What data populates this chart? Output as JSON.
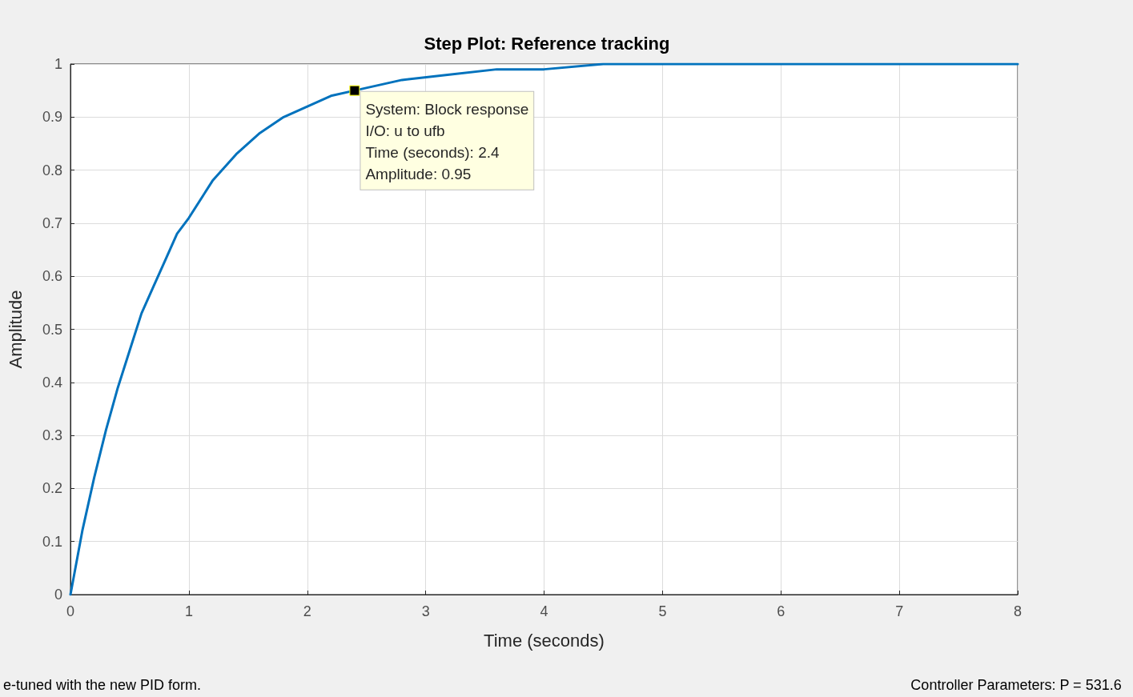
{
  "chart_data": {
    "type": "line",
    "title": "Step Plot: Reference tracking",
    "xlabel": "Time (seconds)",
    "ylabel": "Amplitude",
    "x": [
      0,
      0.1,
      0.2,
      0.3,
      0.4,
      0.5,
      0.6,
      0.7,
      0.8,
      0.9,
      1.0,
      1.2,
      1.4,
      1.6,
      1.8,
      2.0,
      2.2,
      2.4,
      2.8,
      3.2,
      3.6,
      4.0,
      4.5,
      5.0,
      6.0,
      7.0,
      8.0
    ],
    "series": [
      {
        "color": "#0072bd",
        "values": [
          0,
          0.12,
          0.22,
          0.31,
          0.39,
          0.46,
          0.53,
          0.58,
          0.63,
          0.68,
          0.71,
          0.78,
          0.83,
          0.87,
          0.9,
          0.92,
          0.94,
          0.95,
          0.97,
          0.98,
          0.99,
          0.99,
          1.0,
          1.0,
          1.0,
          1.0,
          1.0
        ]
      }
    ],
    "xlim": [
      0,
      8
    ],
    "xticks": [
      0,
      1,
      2,
      3,
      4,
      5,
      6,
      7,
      8
    ],
    "ylim": [
      0,
      1
    ],
    "yticks": [
      0,
      0.1,
      0.2,
      0.3,
      0.4,
      0.5,
      0.6,
      0.7,
      0.8,
      0.9,
      1
    ],
    "grid": true,
    "marker": "none",
    "line_style": "solid",
    "annotations": [
      {
        "text": "System: Block response\nI/O: u to ufb\nTime (seconds): 2.4\nAmplitude: 0.95",
        "x": 2.4,
        "y": 0.95
      },
      "e-tuned with the new PID form.",
      "Controller Parameters: P = 531.6"
    ]
  }
}
